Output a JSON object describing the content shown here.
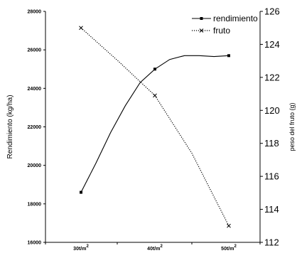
{
  "chart_data": {
    "type": "line",
    "categories": [
      {
        "base": "30t/m",
        "sup": "2"
      },
      {
        "base": "40t/m",
        "sup": "2"
      },
      {
        "base": "50t/m",
        "sup": "2"
      }
    ],
    "ylabel": "Rendimiento (kg/ha)",
    "ylabel_right": "peso del fruto (g)",
    "ylim": [
      16000,
      28000
    ],
    "yticks": [
      16000,
      18000,
      20000,
      22000,
      24000,
      26000,
      28000
    ],
    "ylim_right": [
      112,
      126
    ],
    "yticks_right": [
      112,
      114,
      116,
      118,
      120,
      122,
      124,
      126
    ],
    "legend_position": "top-right",
    "series": [
      {
        "name": "rendimiento",
        "axis": "left",
        "style": "solid",
        "marker": "square",
        "color": "#000000",
        "x": [
          1,
          1.2,
          1.4,
          1.6,
          1.8,
          2,
          2.2,
          2.4,
          2.6,
          2.8,
          3
        ],
        "values": [
          18600,
          20100,
          21700,
          23100,
          24300,
          25000,
          25500,
          25700,
          25700,
          25650,
          25700
        ],
        "marker_x": [
          1,
          2,
          3
        ]
      },
      {
        "name": "fruto",
        "axis": "right",
        "style": "dotted",
        "marker": "cross",
        "color": "#000000",
        "x": [
          1,
          1.5,
          2,
          2.5,
          3
        ],
        "values": [
          125,
          123,
          120.9,
          117.4,
          113
        ],
        "marker_x": [
          1,
          2,
          3
        ]
      }
    ]
  }
}
